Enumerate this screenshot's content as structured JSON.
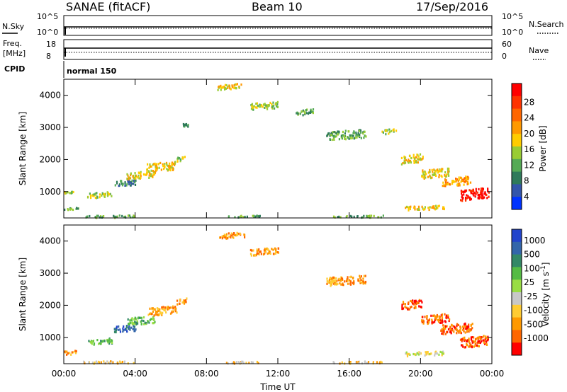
{
  "header": {
    "station": "SANAE (fitACF)",
    "beam": "Beam 10",
    "date": "17/Sep/2016"
  },
  "status_panel": {
    "nsky_label": "N.Sky",
    "nsky_tick_top": "10^5",
    "nsky_tick_bottom": "10^0",
    "nsearch_label": "N.Search",
    "nsearch_tick_top": "10^5",
    "nsearch_tick_bottom": "10^0",
    "freq_label_1": "Freq.",
    "freq_label_2": "[MHz]",
    "freq_tick_top": "18",
    "freq_tick_bottom": "8",
    "nave_label": "Nave",
    "nave_tick_top": "60",
    "nave_tick_bottom": "0",
    "cpid_label": "CPID",
    "cpid_value": "normal 150"
  },
  "chart_data": [
    {
      "type": "heatmap",
      "name": "power",
      "ylabel": "Slant Range [km]",
      "xlabel": "",
      "xlim": [
        0,
        24
      ],
      "ylim": [
        180,
        4500
      ],
      "x_ticks": [
        "00:00",
        "04:00",
        "08:00",
        "12:00",
        "16:00",
        "20:00",
        "00:00"
      ],
      "y_ticks": [
        1000,
        2000,
        3000,
        4000
      ],
      "colorbar": {
        "label": "Power [dB]",
        "ticks": [
          "4",
          "8",
          "12",
          "16",
          "20",
          "24",
          "28"
        ],
        "colors": [
          "#0033ff",
          "#3355aa",
          "#2f7a5a",
          "#55aa55",
          "#99cc33",
          "#ffcc00",
          "#ff9900",
          "#ff6600",
          "#ff3300",
          "#ff0000"
        ]
      },
      "clusters": [
        {
          "t": 0.2,
          "r": 1000,
          "w": 0.6,
          "h": 60,
          "level": 4
        },
        {
          "t": 0.4,
          "r": 500,
          "w": 0.8,
          "h": 80,
          "level": 3
        },
        {
          "t": 2.0,
          "r": 920,
          "w": 1.4,
          "h": 160,
          "level": 4
        },
        {
          "t": 3.4,
          "r": 1300,
          "w": 1.2,
          "h": 180,
          "level": 2
        },
        {
          "t": 4.3,
          "r": 1550,
          "w": 1.6,
          "h": 220,
          "level": 5
        },
        {
          "t": 5.4,
          "r": 1800,
          "w": 1.6,
          "h": 260,
          "level": 5
        },
        {
          "t": 6.5,
          "r": 2050,
          "w": 0.6,
          "h": 140,
          "level": 4
        },
        {
          "t": 6.8,
          "r": 3100,
          "w": 0.3,
          "h": 120,
          "level": 3
        },
        {
          "t": 9.3,
          "r": 4300,
          "w": 1.4,
          "h": 160,
          "level": 5
        },
        {
          "t": 11.2,
          "r": 3700,
          "w": 1.6,
          "h": 200,
          "level": 4
        },
        {
          "t": 13.5,
          "r": 3500,
          "w": 1.0,
          "h": 180,
          "level": 3
        },
        {
          "t": 15.8,
          "r": 2800,
          "w": 2.2,
          "h": 260,
          "level": 3
        },
        {
          "t": 18.2,
          "r": 2900,
          "w": 0.8,
          "h": 140,
          "level": 4
        },
        {
          "t": 19.5,
          "r": 2050,
          "w": 1.2,
          "h": 260,
          "level": 5
        },
        {
          "t": 20.8,
          "r": 1600,
          "w": 1.6,
          "h": 260,
          "level": 5
        },
        {
          "t": 22.0,
          "r": 1350,
          "w": 1.6,
          "h": 260,
          "level": 6
        },
        {
          "t": 23.0,
          "r": 950,
          "w": 1.6,
          "h": 320,
          "level": 9
        },
        {
          "t": 20.2,
          "r": 520,
          "w": 2.2,
          "h": 120,
          "level": 5
        },
        {
          "t": 2.5,
          "r": 250,
          "w": 3.0,
          "h": 70,
          "level": 3
        },
        {
          "t": 10.0,
          "r": 250,
          "w": 2.0,
          "h": 60,
          "level": 3
        },
        {
          "t": 16.5,
          "r": 250,
          "w": 3.0,
          "h": 60,
          "level": 3
        }
      ]
    },
    {
      "type": "heatmap",
      "name": "velocity",
      "ylabel": "Slant Range [km]",
      "xlabel": "Time UT",
      "xlim": [
        0,
        24
      ],
      "ylim": [
        180,
        4500
      ],
      "x_ticks": [
        "00:00",
        "04:00",
        "08:00",
        "12:00",
        "16:00",
        "20:00",
        "00:00"
      ],
      "y_ticks": [
        1000,
        2000,
        3000,
        4000
      ],
      "colorbar": {
        "label": "Velocity [m s^-1]",
        "ticks": [
          "1000",
          "500",
          "100",
          "25",
          "-25",
          "-100",
          "-500",
          "-1000"
        ],
        "colors": [
          "#2244cc",
          "#3366aa",
          "#338866",
          "#55bb44",
          "#99dd44",
          "#c8c8c8",
          "#ffcc33",
          "#ff9900",
          "#ff6600",
          "#ff0000"
        ]
      },
      "clusters": [
        {
          "t": 0.3,
          "r": 550,
          "w": 0.8,
          "h": 120,
          "level": 7
        },
        {
          "t": 2.0,
          "r": 900,
          "w": 1.4,
          "h": 160,
          "level": 3
        },
        {
          "t": 3.4,
          "r": 1300,
          "w": 1.2,
          "h": 180,
          "level": 1
        },
        {
          "t": 4.3,
          "r": 1550,
          "w": 1.6,
          "h": 220,
          "level": 3
        },
        {
          "t": 5.5,
          "r": 1850,
          "w": 1.6,
          "h": 260,
          "level": 7
        },
        {
          "t": 6.6,
          "r": 2150,
          "w": 0.6,
          "h": 160,
          "level": 7
        },
        {
          "t": 9.4,
          "r": 4200,
          "w": 1.4,
          "h": 160,
          "level": 7
        },
        {
          "t": 11.2,
          "r": 3700,
          "w": 1.6,
          "h": 200,
          "level": 7
        },
        {
          "t": 15.8,
          "r": 2800,
          "w": 2.2,
          "h": 260,
          "level": 7
        },
        {
          "t": 19.5,
          "r": 2050,
          "w": 1.2,
          "h": 260,
          "level": 8
        },
        {
          "t": 20.8,
          "r": 1600,
          "w": 1.6,
          "h": 260,
          "level": 8
        },
        {
          "t": 22.0,
          "r": 1300,
          "w": 1.8,
          "h": 300,
          "level": 8
        },
        {
          "t": 23.0,
          "r": 900,
          "w": 1.6,
          "h": 320,
          "level": 8
        },
        {
          "t": 20.2,
          "r": 520,
          "w": 2.2,
          "h": 120,
          "level": 5
        },
        {
          "t": 2.5,
          "r": 250,
          "w": 3.0,
          "h": 70,
          "level": 6
        },
        {
          "t": 10.0,
          "r": 250,
          "w": 2.0,
          "h": 60,
          "level": 6
        },
        {
          "t": 16.5,
          "r": 250,
          "w": 3.0,
          "h": 60,
          "level": 6
        }
      ]
    }
  ]
}
